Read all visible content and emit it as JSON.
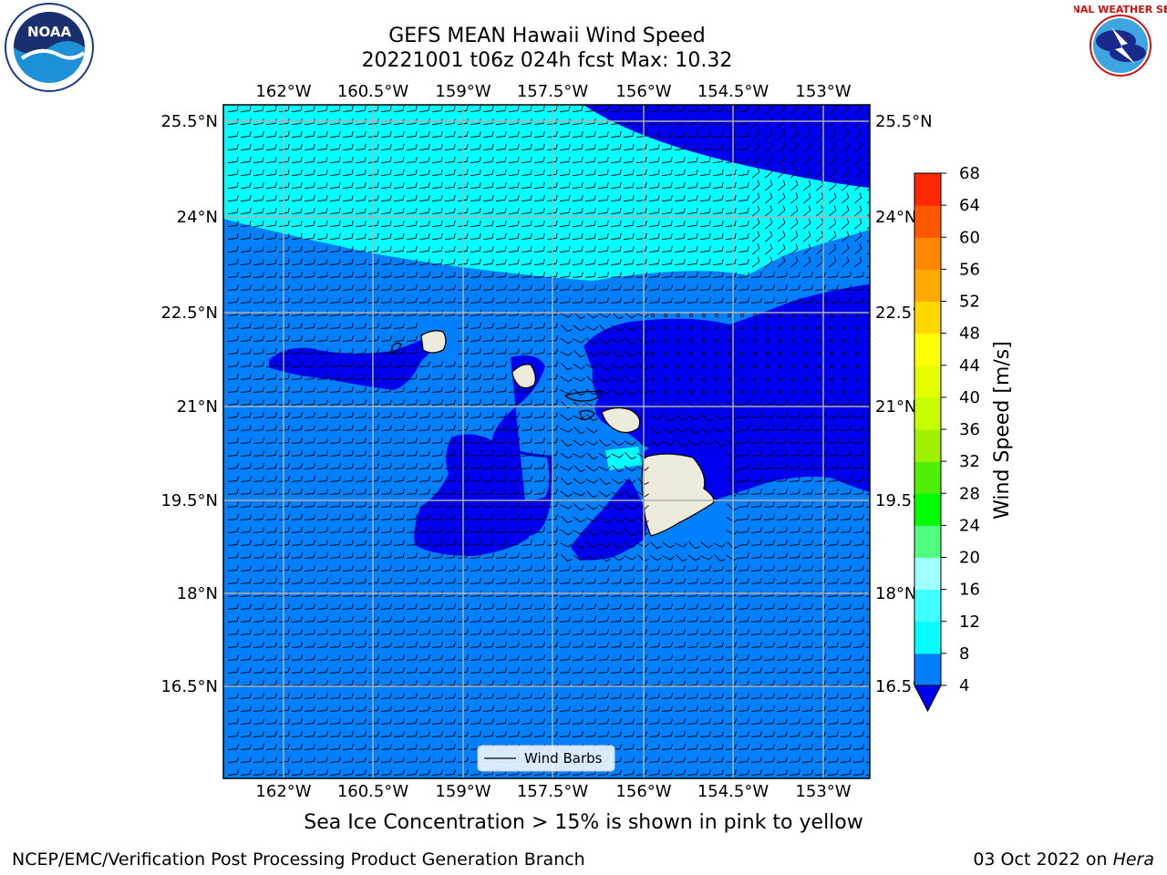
{
  "header": {
    "title_line1": "GEFS MEAN Hawaii Wind Speed",
    "title_line2": "20221001 t06z 024h fcst   Max: 10.32"
  },
  "caption": "Sea Ice Concentration > 15% is shown in pink to yellow",
  "footer": {
    "left": "NCEP/EMC/Verification Post Processing Product Generation Branch",
    "right_date": "03 Oct 2022 on",
    "right_host": "Hera"
  },
  "logos": {
    "noaa_text": "NOAA",
    "nws_text": "NATIONAL WEATHER SERVICE"
  },
  "map": {
    "lon_ticks": [
      "162°W",
      "160.5°W",
      "159°W",
      "157.5°W",
      "156°W",
      "154.5°W",
      "153°W"
    ],
    "lat_ticks": [
      "25.5°N",
      "24°N",
      "22.5°N",
      "21°N",
      "19.5°N",
      "18°N",
      "16.5°N"
    ],
    "legend_label": "Wind Barbs",
    "colors": {
      "ocean_light_blue": "#0080ff",
      "dark_blue": "#0000f0",
      "cyan": "#00ffff",
      "land": "#efebdc",
      "grid": "#b0b0b0"
    }
  },
  "colorbar": {
    "label": "Wind Speed [m/s]",
    "ticks": [
      "4",
      "8",
      "12",
      "16",
      "20",
      "24",
      "28",
      "32",
      "36",
      "40",
      "44",
      "48",
      "52",
      "56",
      "60",
      "64",
      "68"
    ],
    "colors": [
      "#0080ff",
      "#00ffff",
      "#40ffff",
      "#a0ffff",
      "#50ff80",
      "#00ff00",
      "#50ee00",
      "#a0f000",
      "#c8ff00",
      "#e6ff00",
      "#ffff00",
      "#ffd800",
      "#ffa800",
      "#ff8800",
      "#ff5800",
      "#ff2800",
      "#ff0000"
    ],
    "under_color": "#0000f0"
  }
}
